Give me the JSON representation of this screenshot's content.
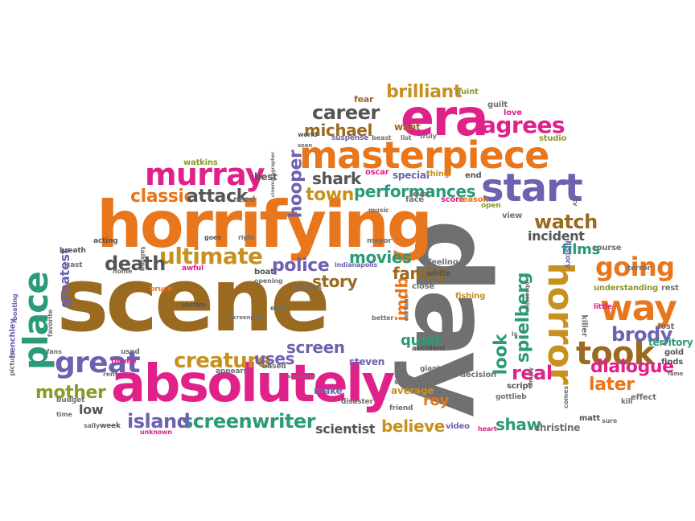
{
  "words": {
    "scene": "scene",
    "day": "day",
    "horrifying": "horrifying",
    "absolutely": "absolutely",
    "era": "era",
    "masterpiece": "masterpiece",
    "horror": "horror",
    "took": "took",
    "start": "start",
    "way": "way",
    "place": "place",
    "great": "great",
    "murray": "murray",
    "classic": "classic",
    "ultimate": "ultimate",
    "going": "going",
    "career": "career",
    "michael": "michael",
    "agrees": "agrees",
    "brilliant": "brilliant",
    "creature": "creature",
    "screenwriter": "screenwriter",
    "dialogue": "dialogue",
    "brody": "brody",
    "death": "death",
    "island": "island",
    "mother": "mother",
    "later": "later",
    "watch": "watch",
    "movies": "movies",
    "performances": "performances",
    "police": "police",
    "hooper": "hooper",
    "shark": "shark",
    "town": "town",
    "attack": "attack",
    "story": "story",
    "screen": "screen",
    "uses": "uses",
    "real": "real",
    "look": "look",
    "spielberg": "spielberg",
    "imdb": "imdb",
    "family": "family",
    "quiet": "quiet",
    "believe": "believe",
    "roy": "roy",
    "shaw": "shaw",
    "films": "films",
    "incident": "incident",
    "scientist": "scientist",
    "christine": "christine",
    "low": "low",
    "greatest": "greatest",
    "steven": "steven",
    "want": "want",
    "special": "special",
    "territory": "territory",
    "fear": "fear",
    "quint": "quint",
    "guilt": "guilt",
    "love": "love",
    "studio": "studio",
    "watkins": "watkins",
    "best": "best",
    "need": "need",
    "oscar": "oscar",
    "thing": "thing",
    "end": "end",
    "face": "face",
    "level": "level",
    "score": "score",
    "reason": "reason",
    "open": "open",
    "view": "view",
    "course": "course",
    "feeling": "feeling",
    "white": "white",
    "close": "close",
    "fishing": "fishing",
    "history": "history",
    "understanding": "understanding",
    "rest": "rest",
    "killer": "killer",
    "little": "little",
    "lost": "lost",
    "gold": "gold",
    "finds": "finds",
    "effect": "effect",
    "matt": "matt",
    "kill": "kill",
    "comes": "comes",
    "sure": "sure",
    "video": "video",
    "heart": "heart",
    "gottlieb": "gottlieb",
    "script": "script",
    "decision": "decision",
    "accident": "accident",
    "giant": "giant",
    "written": "written",
    "average": "average",
    "friend": "friend",
    "disaster": "disaster",
    "make": "make",
    "based": "based",
    "used": "used",
    "theme": "theme",
    "appears": "appears",
    "week": "week",
    "budget": "budget",
    "sally": "sally",
    "time": "time",
    "unknown": "unknown",
    "benchley": "benchley",
    "picture": "picture",
    "boating": "boating",
    "fans": "fans",
    "favorite": "favorite",
    "bruce": "bruce",
    "victim": "victim",
    "breath": "breath",
    "acting": "acting",
    "cast": "cast",
    "home": "home",
    "awful": "awful",
    "talking": "talking",
    "goes": "goes",
    "right": "right",
    "boat": "boat",
    "opening": "opening",
    "eyes": "eyes",
    "screenplay": "screenplay",
    "beaches": "beaches",
    "indianapolis": "indianapolis",
    "better": "better",
    "certain": "certain",
    "successful": "successful",
    "world": "world",
    "seen": "seen",
    "music": "music",
    "suspense": "suspense",
    "beast": "beast",
    "list": "list",
    "truly": "truly",
    "simply": "simply",
    "terror": "terror",
    "rent": "rent",
    "tv": "tv",
    "cinematographer": "cinematographer",
    "obsession": "obsession",
    "is": "is",
    "fame": "fame",
    "mayor": "mayor"
  },
  "colors": {
    "pink": "#e0218a",
    "orange": "#e8761c",
    "gold": "#c8901e",
    "brown": "#9a6a20",
    "green": "#2a9a78",
    "purple": "#6e62b0",
    "gray": "#707070",
    "olive": "#8a9a28",
    "dark": "#555555"
  }
}
